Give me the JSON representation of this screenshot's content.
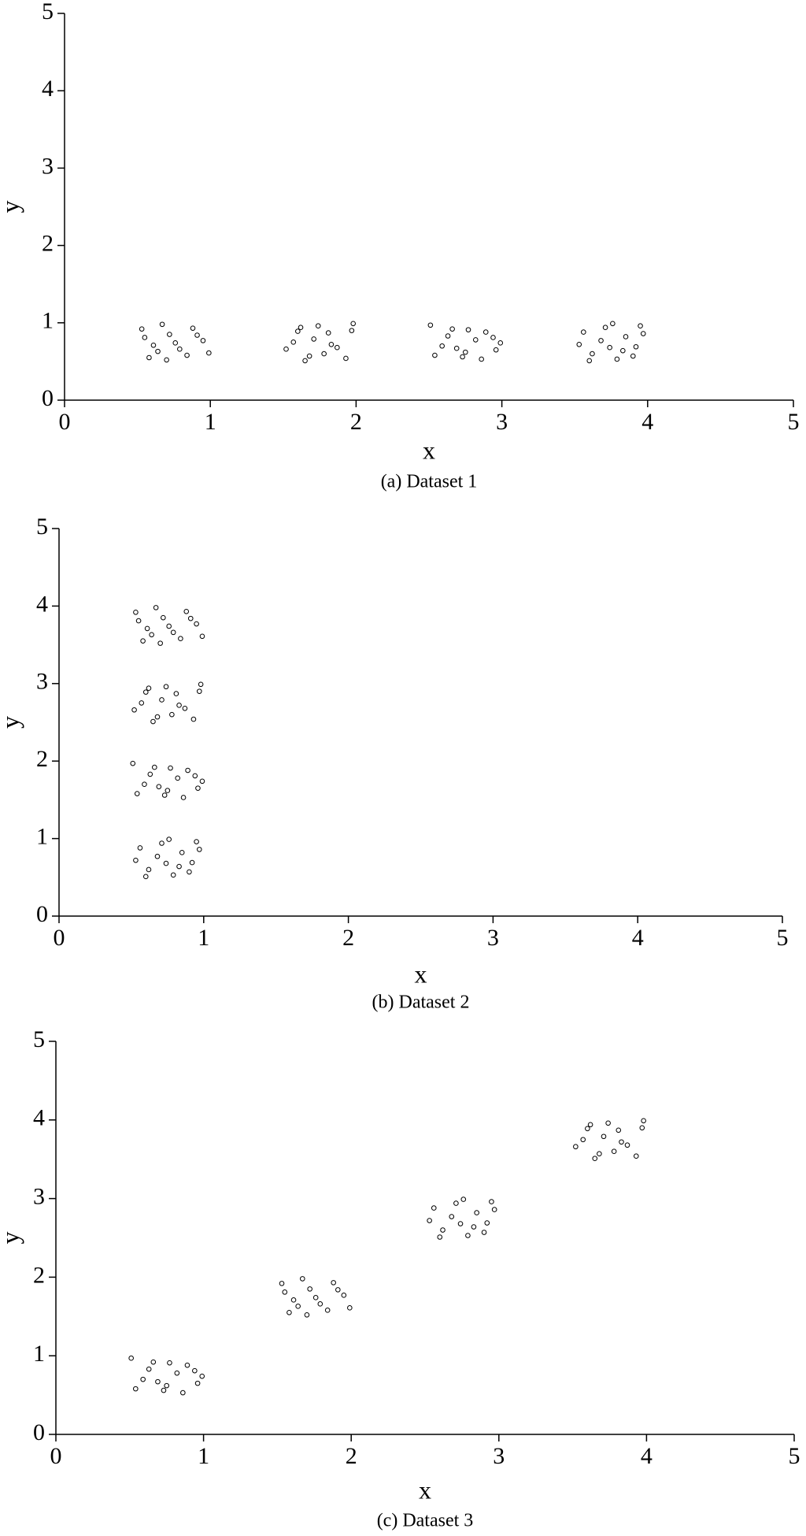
{
  "chart_data": [
    {
      "type": "scatter",
      "caption": "(a) Dataset 1",
      "x_label": "x",
      "y_label": "y",
      "color": "#000000",
      "xlim": [
        0,
        5
      ],
      "ylim": [
        0,
        5
      ],
      "xticks": [
        0,
        1,
        2,
        3,
        4,
        5
      ],
      "yticks": [
        0,
        1,
        2,
        3,
        4,
        5
      ],
      "x": [
        0.53,
        0.61,
        0.72,
        0.84,
        0.95,
        0.58,
        0.67,
        0.79,
        0.88,
        0.99,
        0.55,
        0.7,
        0.76,
        0.91,
        0.64,
        1.52,
        1.6,
        1.68,
        1.74,
        1.83,
        1.97,
        1.57,
        1.65,
        1.81,
        1.93,
        1.87,
        1.71,
        1.98,
        1.62,
        1.78,
        2.54,
        2.63,
        2.69,
        2.77,
        2.86,
        2.94,
        2.51,
        2.73,
        2.82,
        2.96,
        2.59,
        2.66,
        2.89,
        2.75,
        2.99,
        3.56,
        3.62,
        3.71,
        3.79,
        3.85,
        3.92,
        3.53,
        3.68,
        3.76,
        3.9,
        3.97,
        3.6,
        3.83,
        3.74,
        3.95
      ],
      "values": [
        0.92,
        0.71,
        0.85,
        0.58,
        0.77,
        0.55,
        0.98,
        0.66,
        0.93,
        0.61,
        0.81,
        0.52,
        0.74,
        0.84,
        0.63,
        0.66,
        0.89,
        0.57,
        0.96,
        0.72,
        0.9,
        0.75,
        0.51,
        0.87,
        0.54,
        0.68,
        0.79,
        0.99,
        0.94,
        0.6,
        0.58,
        0.83,
        0.67,
        0.91,
        0.53,
        0.81,
        0.97,
        0.56,
        0.78,
        0.65,
        0.7,
        0.92,
        0.88,
        0.62,
        0.74,
        0.88,
        0.6,
        0.94,
        0.53,
        0.82,
        0.69,
        0.72,
        0.77,
        0.99,
        0.57,
        0.86,
        0.51,
        0.64,
        0.68,
        0.96
      ]
    },
    {
      "type": "scatter",
      "caption": "(b) Dataset 2",
      "x_label": "x",
      "y_label": "y",
      "color": "#000000",
      "xlim": [
        0,
        5
      ],
      "ylim": [
        0,
        5
      ],
      "xticks": [
        0,
        1,
        2,
        3,
        4,
        5
      ],
      "yticks": [
        0,
        1,
        2,
        3,
        4,
        5
      ],
      "x": [
        0.56,
        0.62,
        0.71,
        0.79,
        0.85,
        0.92,
        0.53,
        0.68,
        0.76,
        0.9,
        0.97,
        0.6,
        0.83,
        0.74,
        0.95,
        0.54,
        0.63,
        0.69,
        0.77,
        0.86,
        0.94,
        0.51,
        0.73,
        0.82,
        0.96,
        0.59,
        0.66,
        0.89,
        0.75,
        0.99,
        0.52,
        0.6,
        0.68,
        0.74,
        0.83,
        0.97,
        0.57,
        0.65,
        0.81,
        0.93,
        0.87,
        0.71,
        0.98,
        0.62,
        0.78,
        0.53,
        0.61,
        0.72,
        0.84,
        0.95,
        0.58,
        0.67,
        0.79,
        0.88,
        0.99,
        0.55,
        0.7,
        0.76,
        0.91,
        0.64
      ],
      "values": [
        0.88,
        0.6,
        0.94,
        0.53,
        0.82,
        0.69,
        0.72,
        0.77,
        0.99,
        0.57,
        0.86,
        0.51,
        0.64,
        0.68,
        0.96,
        1.58,
        1.83,
        1.67,
        1.91,
        1.53,
        1.81,
        1.97,
        1.56,
        1.78,
        1.65,
        1.7,
        1.92,
        1.88,
        1.62,
        1.74,
        2.66,
        2.89,
        2.57,
        2.96,
        2.72,
        2.9,
        2.75,
        2.51,
        2.87,
        2.54,
        2.68,
        2.79,
        2.99,
        2.94,
        2.6,
        3.92,
        3.71,
        3.85,
        3.58,
        3.77,
        3.55,
        3.98,
        3.66,
        3.93,
        3.61,
        3.81,
        3.52,
        3.74,
        3.84,
        3.63
      ]
    },
    {
      "type": "scatter",
      "caption": "(c) Dataset 3",
      "x_label": "x",
      "y_label": "y",
      "color": "#000000",
      "xlim": [
        0,
        5
      ],
      "ylim": [
        0,
        5
      ],
      "xticks": [
        0,
        1,
        2,
        3,
        4,
        5
      ],
      "yticks": [
        0,
        1,
        2,
        3,
        4,
        5
      ],
      "x": [
        0.54,
        0.63,
        0.69,
        0.77,
        0.86,
        0.94,
        0.51,
        0.73,
        0.82,
        0.96,
        0.59,
        0.66,
        0.89,
        0.75,
        0.99,
        1.53,
        1.61,
        1.72,
        1.84,
        1.95,
        1.58,
        1.67,
        1.79,
        1.88,
        1.99,
        1.55,
        1.7,
        1.76,
        1.91,
        1.64,
        2.56,
        2.62,
        2.71,
        2.79,
        2.85,
        2.92,
        2.53,
        2.68,
        2.76,
        2.9,
        2.97,
        2.6,
        2.83,
        2.74,
        2.95,
        3.52,
        3.6,
        3.68,
        3.74,
        3.83,
        3.97,
        3.57,
        3.65,
        3.81,
        3.93,
        3.87,
        3.71,
        3.98,
        3.62,
        3.78
      ],
      "values": [
        0.58,
        0.83,
        0.67,
        0.91,
        0.53,
        0.81,
        0.97,
        0.56,
        0.78,
        0.65,
        0.7,
        0.92,
        0.88,
        0.62,
        0.74,
        1.92,
        1.71,
        1.85,
        1.58,
        1.77,
        1.55,
        1.98,
        1.66,
        1.93,
        1.61,
        1.81,
        1.52,
        1.74,
        1.84,
        1.63,
        2.88,
        2.6,
        2.94,
        2.53,
        2.82,
        2.69,
        2.72,
        2.77,
        2.99,
        2.57,
        2.86,
        2.51,
        2.64,
        2.68,
        2.96,
        3.66,
        3.89,
        3.57,
        3.96,
        3.72,
        3.9,
        3.75,
        3.51,
        3.87,
        3.54,
        3.68,
        3.79,
        3.99,
        3.94,
        3.6
      ]
    }
  ]
}
